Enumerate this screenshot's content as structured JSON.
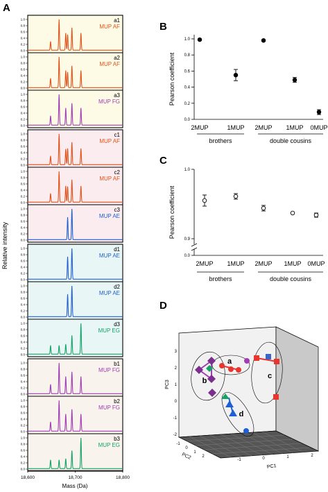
{
  "panel_letters": {
    "A": "A",
    "B": "B",
    "C": "C",
    "D": "D"
  },
  "colors": {
    "AF": "#e0521b",
    "FG": "#a13cb4",
    "AE": "#1f5fd6",
    "EG": "#13a366",
    "bg_a": "#fdfbe6",
    "bg_c": "#fbecef",
    "bg_d": "#e9f6f6",
    "bg_b": "#f8f3ec"
  },
  "chart_data": [
    {
      "panel": "A",
      "type": "line",
      "xlabel": "Mass (Da)",
      "ylabel": "Relative intensity",
      "xlim": [
        18600,
        18800
      ],
      "xticks": [
        "18,600",
        "18,700",
        "18,800"
      ],
      "yticks": [
        "0.0",
        "0.2",
        "0.4",
        "0.6",
        "0.8",
        "1.0"
      ],
      "groups": [
        {
          "key": "a",
          "subplots": [
            {
              "id": "a1",
              "label": "MUP AF",
              "color_key": "AF",
              "peaks": [
                [
                  18648,
                  0.28
                ],
                [
                  18666,
                  1.0
                ],
                [
                  18680,
                  0.55
                ],
                [
                  18684,
                  0.5
                ],
                [
                  18693,
                  0.72
                ],
                [
                  18712,
                  0.55
                ]
              ]
            },
            {
              "id": "a2",
              "label": "MUP AF",
              "color_key": "AF",
              "peaks": [
                [
                  18648,
                  0.3
                ],
                [
                  18666,
                  1.0
                ],
                [
                  18680,
                  0.55
                ],
                [
                  18684,
                  0.5
                ],
                [
                  18693,
                  0.7
                ],
                [
                  18712,
                  0.55
                ]
              ]
            },
            {
              "id": "a3",
              "label": "MUP FG",
              "color_key": "FG",
              "peaks": [
                [
                  18648,
                  0.3
                ],
                [
                  18666,
                  1.0
                ],
                [
                  18680,
                  0.55
                ],
                [
                  18693,
                  0.7
                ],
                [
                  18712,
                  0.55
                ]
              ]
            }
          ]
        },
        {
          "key": "c",
          "subplots": [
            {
              "id": "c1",
              "label": "MUP AF",
              "color_key": "AF",
              "peaks": [
                [
                  18648,
                  0.28
                ],
                [
                  18666,
                  1.0
                ],
                [
                  18680,
                  0.5
                ],
                [
                  18684,
                  0.52
                ],
                [
                  18693,
                  0.72
                ],
                [
                  18712,
                  0.52
                ]
              ]
            },
            {
              "id": "c2",
              "label": "MUP AF",
              "color_key": "AF",
              "peaks": [
                [
                  18648,
                  0.28
                ],
                [
                  18666,
                  1.0
                ],
                [
                  18680,
                  0.52
                ],
                [
                  18684,
                  0.5
                ],
                [
                  18693,
                  0.72
                ],
                [
                  18712,
                  0.52
                ]
              ]
            },
            {
              "id": "c3",
              "label": "MUP AE",
              "color_key": "AE",
              "peaks": [
                [
                  18684,
                  0.72
                ],
                [
                  18693,
                  1.0
                ]
              ]
            }
          ]
        },
        {
          "key": "d",
          "subplots": [
            {
              "id": "d1",
              "label": "MUP AE",
              "color_key": "AE",
              "peaks": [
                [
                  18684,
                  0.72
                ],
                [
                  18693,
                  1.0
                ]
              ]
            },
            {
              "id": "d2",
              "label": "MUP AE",
              "color_key": "AE",
              "peaks": [
                [
                  18684,
                  0.72
                ],
                [
                  18693,
                  1.0
                ]
              ]
            },
            {
              "id": "d3",
              "label": "MUP EG",
              "color_key": "EG",
              "peaks": [
                [
                  18648,
                  0.28
                ],
                [
                  18666,
                  0.28
                ],
                [
                  18680,
                  0.32
                ],
                [
                  18693,
                  0.6
                ],
                [
                  18712,
                  1.0
                ]
              ]
            }
          ]
        },
        {
          "key": "b",
          "subplots": [
            {
              "id": "b1",
              "label": "MUP FG",
              "color_key": "FG",
              "peaks": [
                [
                  18648,
                  0.3
                ],
                [
                  18666,
                  1.0
                ],
                [
                  18680,
                  0.55
                ],
                [
                  18693,
                  0.7
                ],
                [
                  18712,
                  0.55
                ]
              ]
            },
            {
              "id": "b2",
              "label": "MUP FG",
              "color_key": "FG",
              "peaks": [
                [
                  18648,
                  0.3
                ],
                [
                  18666,
                  1.0
                ],
                [
                  18680,
                  0.55
                ],
                [
                  18693,
                  0.7
                ],
                [
                  18712,
                  0.55
                ]
              ]
            },
            {
              "id": "b3",
              "label": "MUP EG",
              "color_key": "EG",
              "peaks": [
                [
                  18648,
                  0.28
                ],
                [
                  18666,
                  0.28
                ],
                [
                  18680,
                  0.32
                ],
                [
                  18693,
                  0.58
                ],
                [
                  18712,
                  1.0
                ]
              ]
            }
          ]
        }
      ]
    },
    {
      "panel": "B",
      "type": "scatter",
      "ylabel": "Pearson coefficient",
      "ylim": [
        0,
        1.0
      ],
      "yticks": [
        0.0,
        0.2,
        0.4,
        0.6,
        0.8,
        1.0
      ],
      "categories": [
        "2MUP",
        "1MUP",
        "2MUP",
        "1MUP",
        "0MUP"
      ],
      "values": [
        0.99,
        0.55,
        0.98,
        0.49,
        0.09
      ],
      "errors": [
        0.01,
        0.07,
        0.01,
        0.03,
        0.03
      ],
      "groups": [
        {
          "label": "brothers",
          "span": [
            0,
            1
          ]
        },
        {
          "label": "double cousins",
          "span": [
            2,
            4
          ]
        }
      ]
    },
    {
      "panel": "C",
      "type": "scatter",
      "ylabel": "Pearson coefficient",
      "ylim": [
        0.9,
        1.0
      ],
      "axis_break": true,
      "yticks": [
        "0.0",
        "0.9",
        "1.0"
      ],
      "categories": [
        "2MUP",
        "1MUP",
        "2MUP",
        "1MUP",
        "0MUP"
      ],
      "values": [
        0.955,
        0.961,
        0.944,
        0.937,
        0.934
      ],
      "errors": [
        0.008,
        0.004,
        0.004,
        0.001,
        0.003
      ],
      "groups": [
        {
          "label": "brothers",
          "span": [
            0,
            1
          ]
        },
        {
          "label": "double cousins",
          "span": [
            2,
            4
          ]
        }
      ]
    },
    {
      "panel": "D",
      "type": "scatter",
      "axes": {
        "x": "PC1",
        "y": "PC2",
        "z": "PC3"
      },
      "ticks": {
        "PC1": [
          "-1",
          "0",
          "1",
          "2"
        ],
        "PC2": [
          "-1",
          "0",
          "1",
          "2"
        ],
        "PC3": [
          "-2",
          "-1",
          "0",
          "1",
          "2",
          "3"
        ]
      },
      "clusters": [
        {
          "label": "a"
        },
        {
          "label": "b"
        },
        {
          "label": "c"
        },
        {
          "label": "d"
        }
      ]
    }
  ]
}
